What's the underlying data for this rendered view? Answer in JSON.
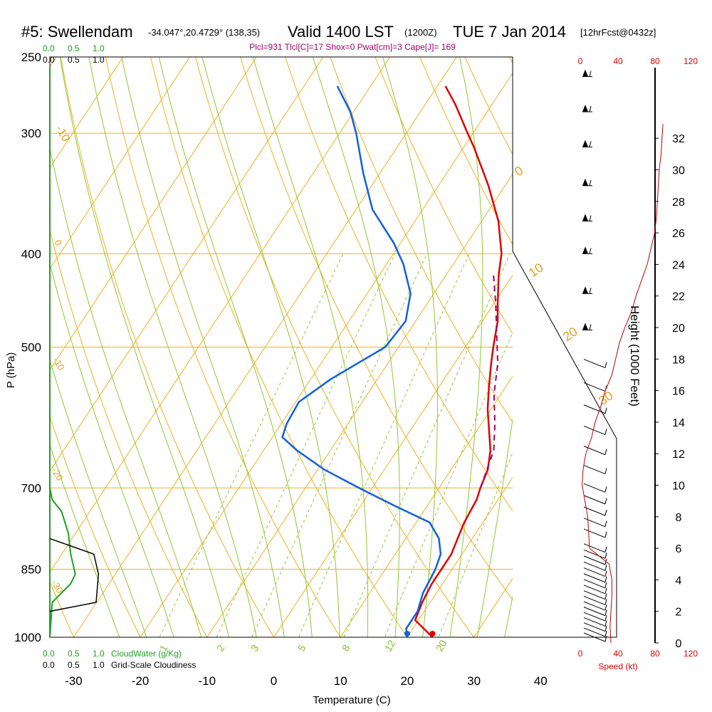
{
  "chart_data": {
    "type": "skew-t sounding",
    "title": {
      "station": "#5: Swellendam",
      "coords": "-34.047°,20.4729° (138,35)",
      "valid": "Valid 1400 LST",
      "zulu": "(1200Z)",
      "date": "TUE 7 Jan 2014",
      "forecast": "[12hrFcst@0432z]"
    },
    "params": "Plcl=931 Tlcl[C]=17 Shox=0 Pwat[cm]=3 Cape[J]= 169",
    "xlabel": "Temperature (C)",
    "ylabel": "P (hPa)",
    "height_label": "Height (1000 Feet)",
    "x_ticks": [
      -30,
      -20,
      -10,
      0,
      10,
      20,
      30,
      40
    ],
    "p_ticks": [
      250,
      300,
      400,
      500,
      700,
      850,
      1000
    ],
    "p_range": [
      1000,
      250
    ],
    "height_ticks": [
      0,
      2,
      4,
      6,
      8,
      10,
      12,
      14,
      16,
      18,
      20,
      22,
      24,
      26,
      28,
      30,
      32
    ],
    "isotherm_labels": [
      "-10",
      "0",
      "10",
      "20",
      "30",
      "-10",
      "-20",
      "-30",
      "0",
      "10",
      "20",
      "30"
    ],
    "mixing_ratio_labels": [
      "1",
      "2",
      "3",
      "5",
      "8",
      "12",
      "20"
    ],
    "mixing_ratios": [
      1,
      2,
      3,
      5,
      8,
      12,
      20
    ],
    "speed_ticks": [
      "0",
      "40",
      "80",
      "120"
    ],
    "speed_label": "Speed (kt)",
    "cloudwater_ticks": [
      "0.0",
      "0.5",
      "1.0"
    ],
    "cloudwater_label": "CloudWater (g/Kg)",
    "cloudiness_ticks": [
      "0.0",
      "0.5",
      "1.0"
    ],
    "cloudiness_label": "Grid-Scale Cloudiness",
    "series": [
      {
        "name": "temperature",
        "color": "#e00000",
        "points": [
          [
            1000,
            23.8
          ],
          [
            960,
            19.5
          ],
          [
            920,
            18.8
          ],
          [
            880,
            18.4
          ],
          [
            850,
            18.4
          ],
          [
            820,
            18.4
          ],
          [
            790,
            17.8
          ],
          [
            760,
            17.2
          ],
          [
            720,
            16.8
          ],
          [
            700,
            16.2
          ],
          [
            670,
            15.5
          ],
          [
            640,
            14.0
          ],
          [
            610,
            11.8
          ],
          [
            580,
            9.5
          ],
          [
            550,
            7.5
          ],
          [
            520,
            5.5
          ],
          [
            500,
            4.2
          ],
          [
            470,
            2.3
          ],
          [
            450,
            0.5
          ],
          [
            420,
            -2.2
          ],
          [
            400,
            -3.8
          ],
          [
            370,
            -7.5
          ],
          [
            340,
            -12.5
          ],
          [
            310,
            -18.5
          ],
          [
            300,
            -20.8
          ],
          [
            280,
            -25.5
          ],
          [
            268,
            -28.8
          ]
        ]
      },
      {
        "name": "dewpoint",
        "color": "#1060e0",
        "points": [
          [
            1000,
            20.0
          ],
          [
            980,
            19.0
          ],
          [
            940,
            19.0
          ],
          [
            900,
            18.0
          ],
          [
            850,
            17.5
          ],
          [
            820,
            16.8
          ],
          [
            790,
            15.0
          ],
          [
            760,
            12.0
          ],
          [
            730,
            5.0
          ],
          [
            700,
            -2.0
          ],
          [
            670,
            -9.0
          ],
          [
            640,
            -15.0
          ],
          [
            620,
            -18.5
          ],
          [
            600,
            -19.2
          ],
          [
            570,
            -19.5
          ],
          [
            540,
            -17.0
          ],
          [
            500,
            -12.0
          ],
          [
            470,
            -11.5
          ],
          [
            440,
            -13.5
          ],
          [
            410,
            -17.5
          ],
          [
            390,
            -21.0
          ],
          [
            360,
            -27.5
          ],
          [
            330,
            -32.5
          ],
          [
            300,
            -37.5
          ],
          [
            285,
            -40.5
          ],
          [
            268,
            -45.0
          ]
        ]
      },
      {
        "name": "parcel",
        "color": "#a0006a",
        "points": [
          [
            700,
            16.2
          ],
          [
            640,
            14.5
          ],
          [
            600,
            12.0
          ],
          [
            560,
            9.0
          ],
          [
            520,
            6.5
          ],
          [
            480,
            3.0
          ],
          [
            450,
            0.2
          ],
          [
            420,
            -3.0
          ]
        ]
      }
    ],
    "surface": {
      "temperature": 23.8,
      "dewpoint": 20.0
    },
    "wind_speed_profile": [
      [
        0,
        33
      ],
      [
        1,
        32
      ],
      [
        2,
        33
      ],
      [
        3,
        34
      ],
      [
        4,
        34
      ],
      [
        5,
        31
      ],
      [
        6,
        10
      ],
      [
        7,
        9
      ],
      [
        8,
        8
      ],
      [
        9,
        5
      ],
      [
        10,
        2
      ],
      [
        11,
        3
      ],
      [
        12,
        6
      ],
      [
        13,
        12
      ],
      [
        14,
        16
      ],
      [
        15,
        22
      ],
      [
        16,
        27
      ],
      [
        17,
        34
      ],
      [
        18,
        38
      ],
      [
        19,
        42
      ],
      [
        20,
        48
      ],
      [
        21,
        55
      ],
      [
        22,
        60
      ],
      [
        23,
        66
      ],
      [
        24,
        72
      ],
      [
        25,
        76
      ],
      [
        26,
        80
      ],
      [
        27,
        82
      ],
      [
        28,
        83
      ],
      [
        29,
        84
      ],
      [
        30,
        85
      ],
      [
        31,
        87
      ],
      [
        32,
        88
      ],
      [
        32.9,
        89
      ]
    ],
    "cloud_water": [
      [
        1000,
        0
      ],
      [
        920,
        0.05
      ],
      [
        880,
        0.45
      ],
      [
        860,
        0.55
      ],
      [
        820,
        0.45
      ],
      [
        780,
        0.4
      ],
      [
        740,
        0.25
      ],
      [
        720,
        0.05
      ],
      [
        700,
        0
      ]
    ],
    "cloudiness": [
      [
        940,
        0
      ],
      [
        920,
        1.0
      ],
      [
        860,
        1.05
      ],
      [
        820,
        0.95
      ],
      [
        790,
        0
      ]
    ]
  }
}
